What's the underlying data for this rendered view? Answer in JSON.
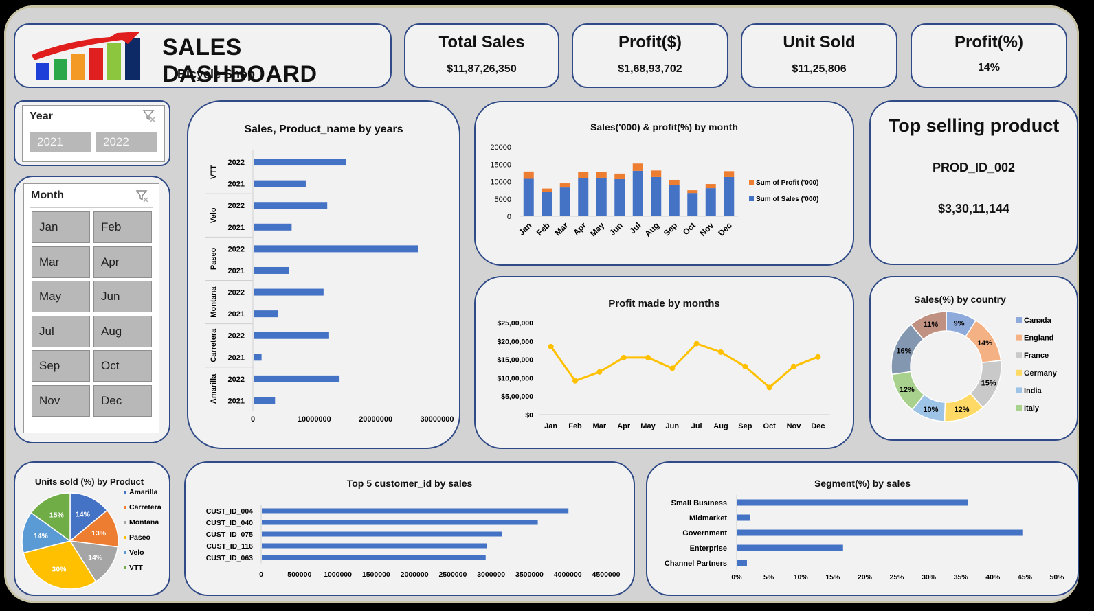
{
  "header": {
    "title": "SALES DASHBOARD",
    "subtitle": "Bicycle Shop"
  },
  "kpis": [
    {
      "label": "Total Sales",
      "value": "$11,87,26,350"
    },
    {
      "label": "Profit($)",
      "value": "$1,68,93,702"
    },
    {
      "label": "Unit Sold",
      "value": "$11,25,806"
    },
    {
      "label": "Profit(%)",
      "value": "14%"
    }
  ],
  "slicers": {
    "year": {
      "title": "Year",
      "options": [
        "2021",
        "2022"
      ]
    },
    "month": {
      "title": "Month",
      "options": [
        "Jan",
        "Feb",
        "Mar",
        "Apr",
        "May",
        "Jun",
        "Jul",
        "Aug",
        "Sep",
        "Oct",
        "Nov",
        "Dec"
      ]
    }
  },
  "top_product": {
    "title": "Top selling product",
    "product": "PROD_ID_002",
    "value": "$3,30,11,144"
  },
  "colors": {
    "border": "#2f4a86",
    "bar_blue": "#4472c4",
    "bar_orange": "#ed7d31",
    "line_gold": "#ffc000"
  },
  "chart_data": [
    {
      "id": "product_years",
      "type": "bar",
      "orientation": "horizontal",
      "title": "Sales, Product_name by years",
      "groups": [
        {
          "name": "VTT",
          "bars": [
            {
              "year": "2022",
              "value": 15000000
            },
            {
              "year": "2021",
              "value": 8500000
            }
          ]
        },
        {
          "name": "Velo",
          "bars": [
            {
              "year": "2022",
              "value": 12000000
            },
            {
              "year": "2021",
              "value": 6200000
            }
          ]
        },
        {
          "name": "Paseo",
          "bars": [
            {
              "year": "2022",
              "value": 26800000
            },
            {
              "year": "2021",
              "value": 5800000
            }
          ]
        },
        {
          "name": "Montana",
          "bars": [
            {
              "year": "2022",
              "value": 11400000
            },
            {
              "year": "2021",
              "value": 4000000
            }
          ]
        },
        {
          "name": "Carretera",
          "bars": [
            {
              "year": "2022",
              "value": 12300000
            },
            {
              "year": "2021",
              "value": 1300000
            }
          ]
        },
        {
          "name": "Amarilla",
          "bars": [
            {
              "year": "2022",
              "value": 14000000
            },
            {
              "year": "2021",
              "value": 3500000
            }
          ]
        }
      ],
      "xlim": [
        0,
        30000000
      ],
      "xticks": [
        "0",
        "10000000",
        "20000000",
        "30000000"
      ]
    },
    {
      "id": "sales_profit_month",
      "type": "bar",
      "stacked": true,
      "title": "Sales('000) & profit(%) by month",
      "categories": [
        "Jan",
        "Feb",
        "Mar",
        "Apr",
        "May",
        "Jun",
        "Jul",
        "Aug",
        "Sep",
        "Oct",
        "Nov",
        "Dec"
      ],
      "series": [
        {
          "name": "Sum of Sales ('000)",
          "values": [
            10800,
            7000,
            8300,
            11000,
            11100,
            10700,
            13100,
            11300,
            9000,
            6700,
            8100,
            11300
          ]
        },
        {
          "name": "Sum of Profit ('000)",
          "values": [
            2100,
            1000,
            1200,
            1700,
            1700,
            1600,
            2100,
            1900,
            1500,
            800,
            1200,
            1700
          ]
        }
      ],
      "ylim": [
        0,
        20000
      ],
      "yticks": [
        "0",
        "5000",
        "10000",
        "15000",
        "20000"
      ],
      "legend": "right"
    },
    {
      "id": "profit_months",
      "type": "line",
      "title": "Profit made by months",
      "categories": [
        "Jan",
        "Feb",
        "Mar",
        "Apr",
        "May",
        "Jun",
        "Jul",
        "Aug",
        "Sep",
        "Oct",
        "Nov",
        "Dec"
      ],
      "values": [
        1850000,
        920000,
        1160000,
        1550000,
        1550000,
        1260000,
        1930000,
        1700000,
        1310000,
        740000,
        1310000,
        1570000
      ],
      "ylim": [
        0,
        2500000
      ],
      "yticks": [
        "$0",
        "$5,00,000",
        "$10,00,000",
        "$15,00,000",
        "$20,00,000",
        "$25,00,000"
      ]
    },
    {
      "id": "sales_country",
      "type": "pie",
      "donut": true,
      "title": "Sales(%) by country",
      "slices": [
        {
          "label": "Canada",
          "value": 9,
          "text": "9%",
          "color": "#8eaadb"
        },
        {
          "label": "England",
          "value": 14,
          "text": "14%",
          "color": "#f4b183"
        },
        {
          "label": "France",
          "value": 15,
          "text": "15%",
          "color": "#c9c9c9"
        },
        {
          "label": "Germany",
          "value": 12,
          "text": "12%",
          "color": "#ffd966"
        },
        {
          "label": "India",
          "value": 10,
          "text": "10%",
          "color": "#9dc3e6"
        },
        {
          "label": "Italy",
          "value": 12,
          "text": "12%",
          "color": "#a9d18e"
        },
        {
          "label": "",
          "value": 16,
          "text": "16%",
          "color": "#8497b0"
        },
        {
          "label": "",
          "value": 11,
          "text": "11%",
          "color": "#c09080"
        }
      ]
    },
    {
      "id": "units_product",
      "type": "pie",
      "title": "Units sold (%) by Product",
      "slices": [
        {
          "label": "Amarilla",
          "value": 14,
          "text": "14%",
          "color": "#4472c4"
        },
        {
          "label": "Carretera",
          "value": 13,
          "text": "13%",
          "color": "#ed7d31"
        },
        {
          "label": "Montana",
          "value": 14,
          "text": "14%",
          "color": "#a5a5a5"
        },
        {
          "label": "Paseo",
          "value": 30,
          "text": "30%",
          "color": "#ffc000"
        },
        {
          "label": "Velo",
          "value": 14,
          "text": "14%",
          "color": "#5b9bd5"
        },
        {
          "label": "VTT",
          "value": 15,
          "text": "15%",
          "color": "#70ad47"
        }
      ]
    },
    {
      "id": "top_customers",
      "type": "bar",
      "orientation": "horizontal",
      "title": "Top 5 customer_id by sales",
      "categories": [
        "CUST_ID_004",
        "CUST_ID_040",
        "CUST_ID_075",
        "CUST_ID_116",
        "CUST_ID_063"
      ],
      "values": [
        4000000,
        3600000,
        3130000,
        2940000,
        2920000
      ],
      "xlim": [
        0,
        4500000
      ],
      "xticks": [
        "0",
        "500000",
        "1000000",
        "1500000",
        "2000000",
        "2500000",
        "3000000",
        "3500000",
        "4000000",
        "4500000"
      ]
    },
    {
      "id": "segment_sales",
      "type": "bar",
      "orientation": "horizontal",
      "title": "Segment(%) by sales",
      "categories": [
        "Small Business",
        "Midmarket",
        "Government",
        "Enterprise",
        "Channel Partners"
      ],
      "values": [
        36,
        2,
        44.5,
        16.5,
        1.5
      ],
      "xlim": [
        0,
        50
      ],
      "xticks": [
        "0%",
        "5%",
        "10%",
        "15%",
        "20%",
        "25%",
        "30%",
        "35%",
        "40%",
        "45%",
        "50%"
      ]
    }
  ]
}
